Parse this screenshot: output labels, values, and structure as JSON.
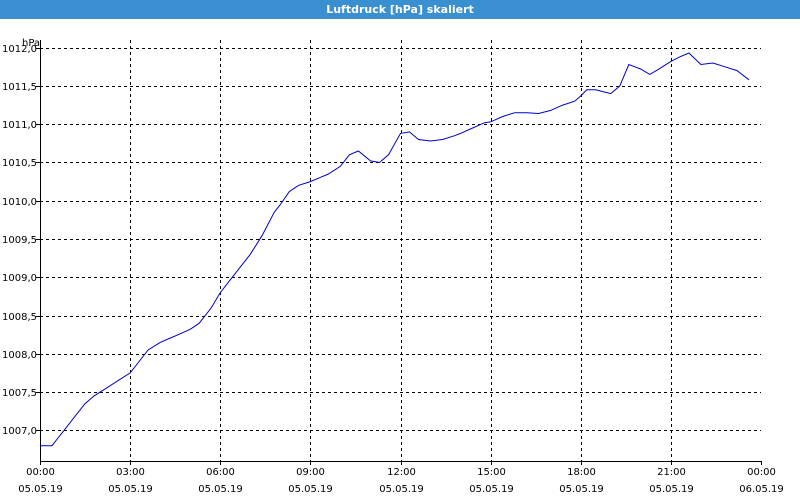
{
  "window": {
    "title": "Luftdruck [hPa] skaliert"
  },
  "chart_data": {
    "type": "line",
    "title": "Luftdruck [hPa] skaliert",
    "ylabel": "hPa",
    "xlabel": "",
    "ylim": [
      1006.6,
      1012.1
    ],
    "xlim_hours": [
      0,
      24
    ],
    "grid": true,
    "colors": {
      "line": "#0000c8",
      "grid": "#000000",
      "title_bar": "#3a8fd0"
    },
    "y_ticks": [
      {
        "v": 1012.0,
        "label": "1012,0"
      },
      {
        "v": 1011.5,
        "label": "1011,5"
      },
      {
        "v": 1011.0,
        "label": "1011,0"
      },
      {
        "v": 1010.5,
        "label": "1010,5"
      },
      {
        "v": 1010.0,
        "label": "1010,0"
      },
      {
        "v": 1009.5,
        "label": "1009,5"
      },
      {
        "v": 1009.0,
        "label": "1009,0"
      },
      {
        "v": 1008.5,
        "label": "1008,5"
      },
      {
        "v": 1008.0,
        "label": "1008,0"
      },
      {
        "v": 1007.5,
        "label": "1007,5"
      },
      {
        "v": 1007.0,
        "label": "1007,0"
      }
    ],
    "x_ticks": [
      {
        "h": 0,
        "time": "00:00",
        "date": "05.05.19"
      },
      {
        "h": 3,
        "time": "03:00",
        "date": "05.05.19"
      },
      {
        "h": 6,
        "time": "06:00",
        "date": "05.05.19"
      },
      {
        "h": 9,
        "time": "09:00",
        "date": "05.05.19"
      },
      {
        "h": 12,
        "time": "12:00",
        "date": "05.05.19"
      },
      {
        "h": 15,
        "time": "15:00",
        "date": "05.05.19"
      },
      {
        "h": 18,
        "time": "18:00",
        "date": "05.05.19"
      },
      {
        "h": 21,
        "time": "21:00",
        "date": "05.05.19"
      },
      {
        "h": 24,
        "time": "00:00",
        "date": "06.05.19"
      }
    ],
    "series": [
      {
        "x_hours": [
          0,
          0.4,
          0.6,
          0.8,
          1.2,
          1.5,
          1.8,
          2.2,
          2.6,
          3.0,
          3.3,
          3.6,
          4.0,
          4.3,
          4.6,
          5.0,
          5.3,
          5.7,
          6.0,
          6.3,
          6.6,
          7.0,
          7.4,
          7.8,
          8.0,
          8.3,
          8.6,
          9.0,
          9.3,
          9.6,
          10.0,
          10.3,
          10.6,
          11.0,
          11.3,
          11.6,
          12.0,
          12.3,
          12.6,
          13.0,
          13.4,
          13.8,
          14.0,
          14.4,
          14.8,
          15.0,
          15.4,
          15.8,
          16.2,
          16.6,
          17.0,
          17.4,
          17.8,
          18.0,
          18.2,
          18.5,
          18.8,
          19.0,
          19.3,
          19.6,
          20.0,
          20.3,
          20.6,
          21.0,
          21.3,
          21.6,
          22.0,
          22.4,
          22.8,
          23.2,
          23.6
        ],
        "y": [
          1006.8,
          1006.8,
          1006.9,
          1007.0,
          1007.2,
          1007.35,
          1007.45,
          1007.55,
          1007.65,
          1007.75,
          1007.9,
          1008.05,
          1008.15,
          1008.2,
          1008.25,
          1008.32,
          1008.4,
          1008.6,
          1008.8,
          1008.95,
          1009.1,
          1009.3,
          1009.55,
          1009.85,
          1009.95,
          1010.12,
          1010.2,
          1010.25,
          1010.3,
          1010.35,
          1010.45,
          1010.6,
          1010.65,
          1010.52,
          1010.5,
          1010.6,
          1010.88,
          1010.9,
          1010.8,
          1010.78,
          1010.8,
          1010.85,
          1010.88,
          1010.95,
          1011.02,
          1011.03,
          1011.1,
          1011.15,
          1011.15,
          1011.14,
          1011.18,
          1011.25,
          1011.3,
          1011.37,
          1011.45,
          1011.45,
          1011.42,
          1011.4,
          1011.5,
          1011.78,
          1011.72,
          1011.65,
          1011.72,
          1011.82,
          1011.88,
          1011.93,
          1011.78,
          1011.8,
          1011.75,
          1011.7,
          1011.58
        ]
      }
    ]
  }
}
